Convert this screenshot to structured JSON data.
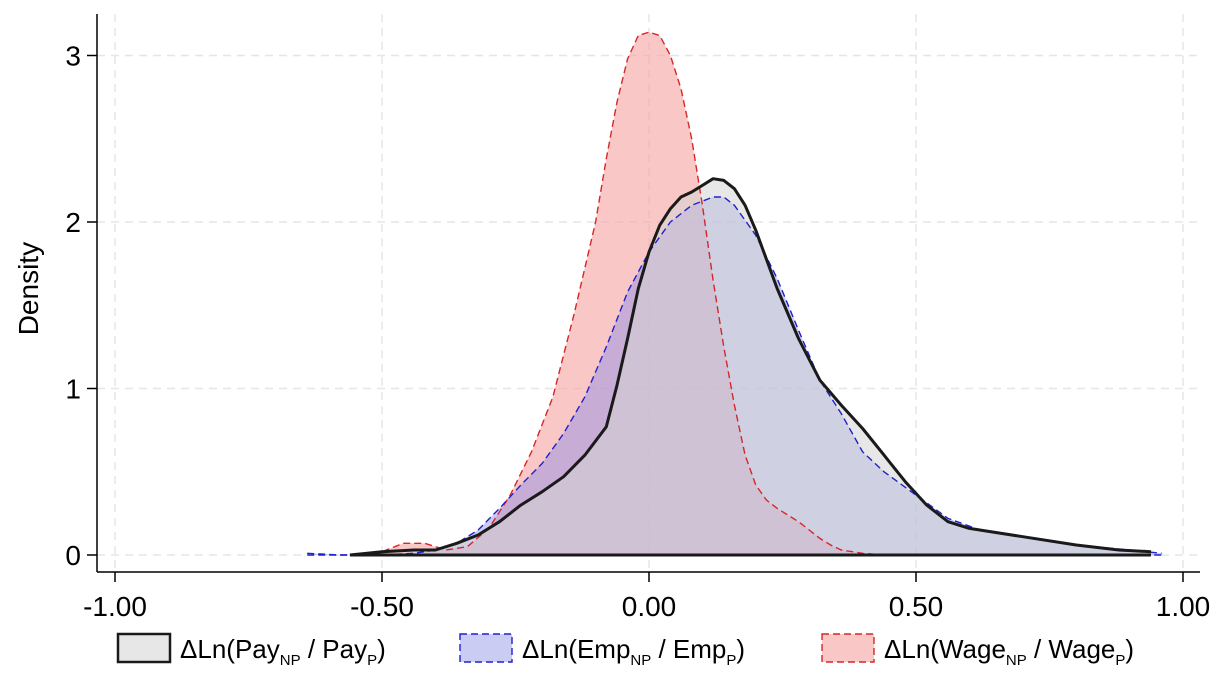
{
  "chart_data": {
    "type": "area",
    "title": "",
    "xlabel": "",
    "ylabel": "Density",
    "xlim": [
      -1.0,
      1.0
    ],
    "ylim": [
      0,
      3.2
    ],
    "grid": true,
    "legend_position": "bottom",
    "x_ticks": [
      {
        "value": -1.0,
        "label": "-1.00"
      },
      {
        "value": -0.5,
        "label": "-0.50"
      },
      {
        "value": 0.0,
        "label": "0.00"
      },
      {
        "value": 0.5,
        "label": "0.50"
      },
      {
        "value": 1.0,
        "label": "1.00"
      }
    ],
    "y_ticks": [
      {
        "value": 0,
        "label": "0"
      },
      {
        "value": 1,
        "label": "1"
      },
      {
        "value": 2,
        "label": "2"
      },
      {
        "value": 3,
        "label": "3"
      }
    ],
    "series": [
      {
        "key": "wage",
        "legend": {
          "prefix": "ΔLn(Wage",
          "sub1": "NP",
          "mid": " / Wage",
          "sub2": "P",
          "suffix": ")"
        },
        "fill": "#f7a1a1",
        "stroke": "#d62728",
        "fill_opacity": 0.6,
        "dashed": true,
        "stroke_width": 1.4,
        "x": [
          -0.56,
          -0.5,
          -0.46,
          -0.42,
          -0.38,
          -0.34,
          -0.3,
          -0.26,
          -0.22,
          -0.18,
          -0.14,
          -0.1,
          -0.08,
          -0.06,
          -0.04,
          -0.02,
          0.0,
          0.02,
          0.04,
          0.06,
          0.08,
          0.1,
          0.12,
          0.14,
          0.16,
          0.18,
          0.2,
          0.22,
          0.24,
          0.26,
          0.28,
          0.3,
          0.32,
          0.34,
          0.36,
          0.4,
          0.44,
          0.48,
          0.6,
          0.8,
          0.94
        ],
        "y": [
          0.0,
          0.02,
          0.07,
          0.07,
          0.03,
          0.05,
          0.16,
          0.36,
          0.62,
          0.95,
          1.45,
          2.0,
          2.38,
          2.72,
          2.98,
          3.12,
          3.14,
          3.12,
          3.0,
          2.8,
          2.5,
          2.1,
          1.65,
          1.25,
          0.9,
          0.6,
          0.42,
          0.33,
          0.28,
          0.24,
          0.2,
          0.15,
          0.1,
          0.06,
          0.03,
          0.01,
          0.0,
          0.0,
          0.0,
          0.0,
          0.0
        ]
      },
      {
        "key": "emp",
        "legend": {
          "prefix": "ΔLn(Emp",
          "sub1": "NP",
          "mid": " / Emp",
          "sub2": "P",
          "suffix": ")"
        },
        "fill": "#8a8ee6",
        "stroke": "#2020d0",
        "fill_opacity": 0.45,
        "dashed": true,
        "stroke_width": 1.4,
        "x": [
          -0.64,
          -0.58,
          -0.5,
          -0.44,
          -0.4,
          -0.36,
          -0.32,
          -0.28,
          -0.24,
          -0.2,
          -0.16,
          -0.12,
          -0.08,
          -0.04,
          0.0,
          0.04,
          0.08,
          0.12,
          0.14,
          0.16,
          0.2,
          0.24,
          0.28,
          0.32,
          0.36,
          0.4,
          0.44,
          0.5,
          0.56,
          0.62,
          0.7,
          0.8,
          0.9,
          0.96
        ],
        "y": [
          0.01,
          0.0,
          0.0,
          0.01,
          0.03,
          0.07,
          0.15,
          0.28,
          0.42,
          0.55,
          0.73,
          0.95,
          1.25,
          1.58,
          1.82,
          2.0,
          2.1,
          2.15,
          2.15,
          2.1,
          1.92,
          1.66,
          1.35,
          1.05,
          0.85,
          0.62,
          0.5,
          0.36,
          0.22,
          0.15,
          0.11,
          0.06,
          0.03,
          0.01
        ]
      },
      {
        "key": "pay",
        "legend": {
          "prefix": "ΔLn(Pay",
          "sub1": "NP",
          "mid": " / Pay",
          "sub2": "P",
          "suffix": ")"
        },
        "fill": "#d3d3d3",
        "stroke": "#1a1a1a",
        "fill_opacity": 0.55,
        "dashed": false,
        "stroke_width": 3,
        "x": [
          -0.56,
          -0.5,
          -0.44,
          -0.4,
          -0.36,
          -0.32,
          -0.28,
          -0.24,
          -0.2,
          -0.16,
          -0.12,
          -0.08,
          -0.06,
          -0.04,
          -0.02,
          0.0,
          0.02,
          0.04,
          0.06,
          0.08,
          0.1,
          0.12,
          0.14,
          0.16,
          0.18,
          0.2,
          0.24,
          0.28,
          0.32,
          0.36,
          0.4,
          0.44,
          0.48,
          0.52,
          0.56,
          0.6,
          0.7,
          0.8,
          0.88,
          0.94
        ],
        "y": [
          0.0,
          0.02,
          0.03,
          0.03,
          0.07,
          0.12,
          0.2,
          0.3,
          0.38,
          0.47,
          0.6,
          0.77,
          1.02,
          1.3,
          1.6,
          1.82,
          1.98,
          2.08,
          2.15,
          2.18,
          2.22,
          2.26,
          2.25,
          2.2,
          2.1,
          1.95,
          1.6,
          1.3,
          1.05,
          0.9,
          0.76,
          0.6,
          0.44,
          0.3,
          0.2,
          0.16,
          0.11,
          0.06,
          0.03,
          0.02
        ]
      }
    ],
    "legend_order": [
      "pay",
      "emp",
      "wage"
    ]
  }
}
